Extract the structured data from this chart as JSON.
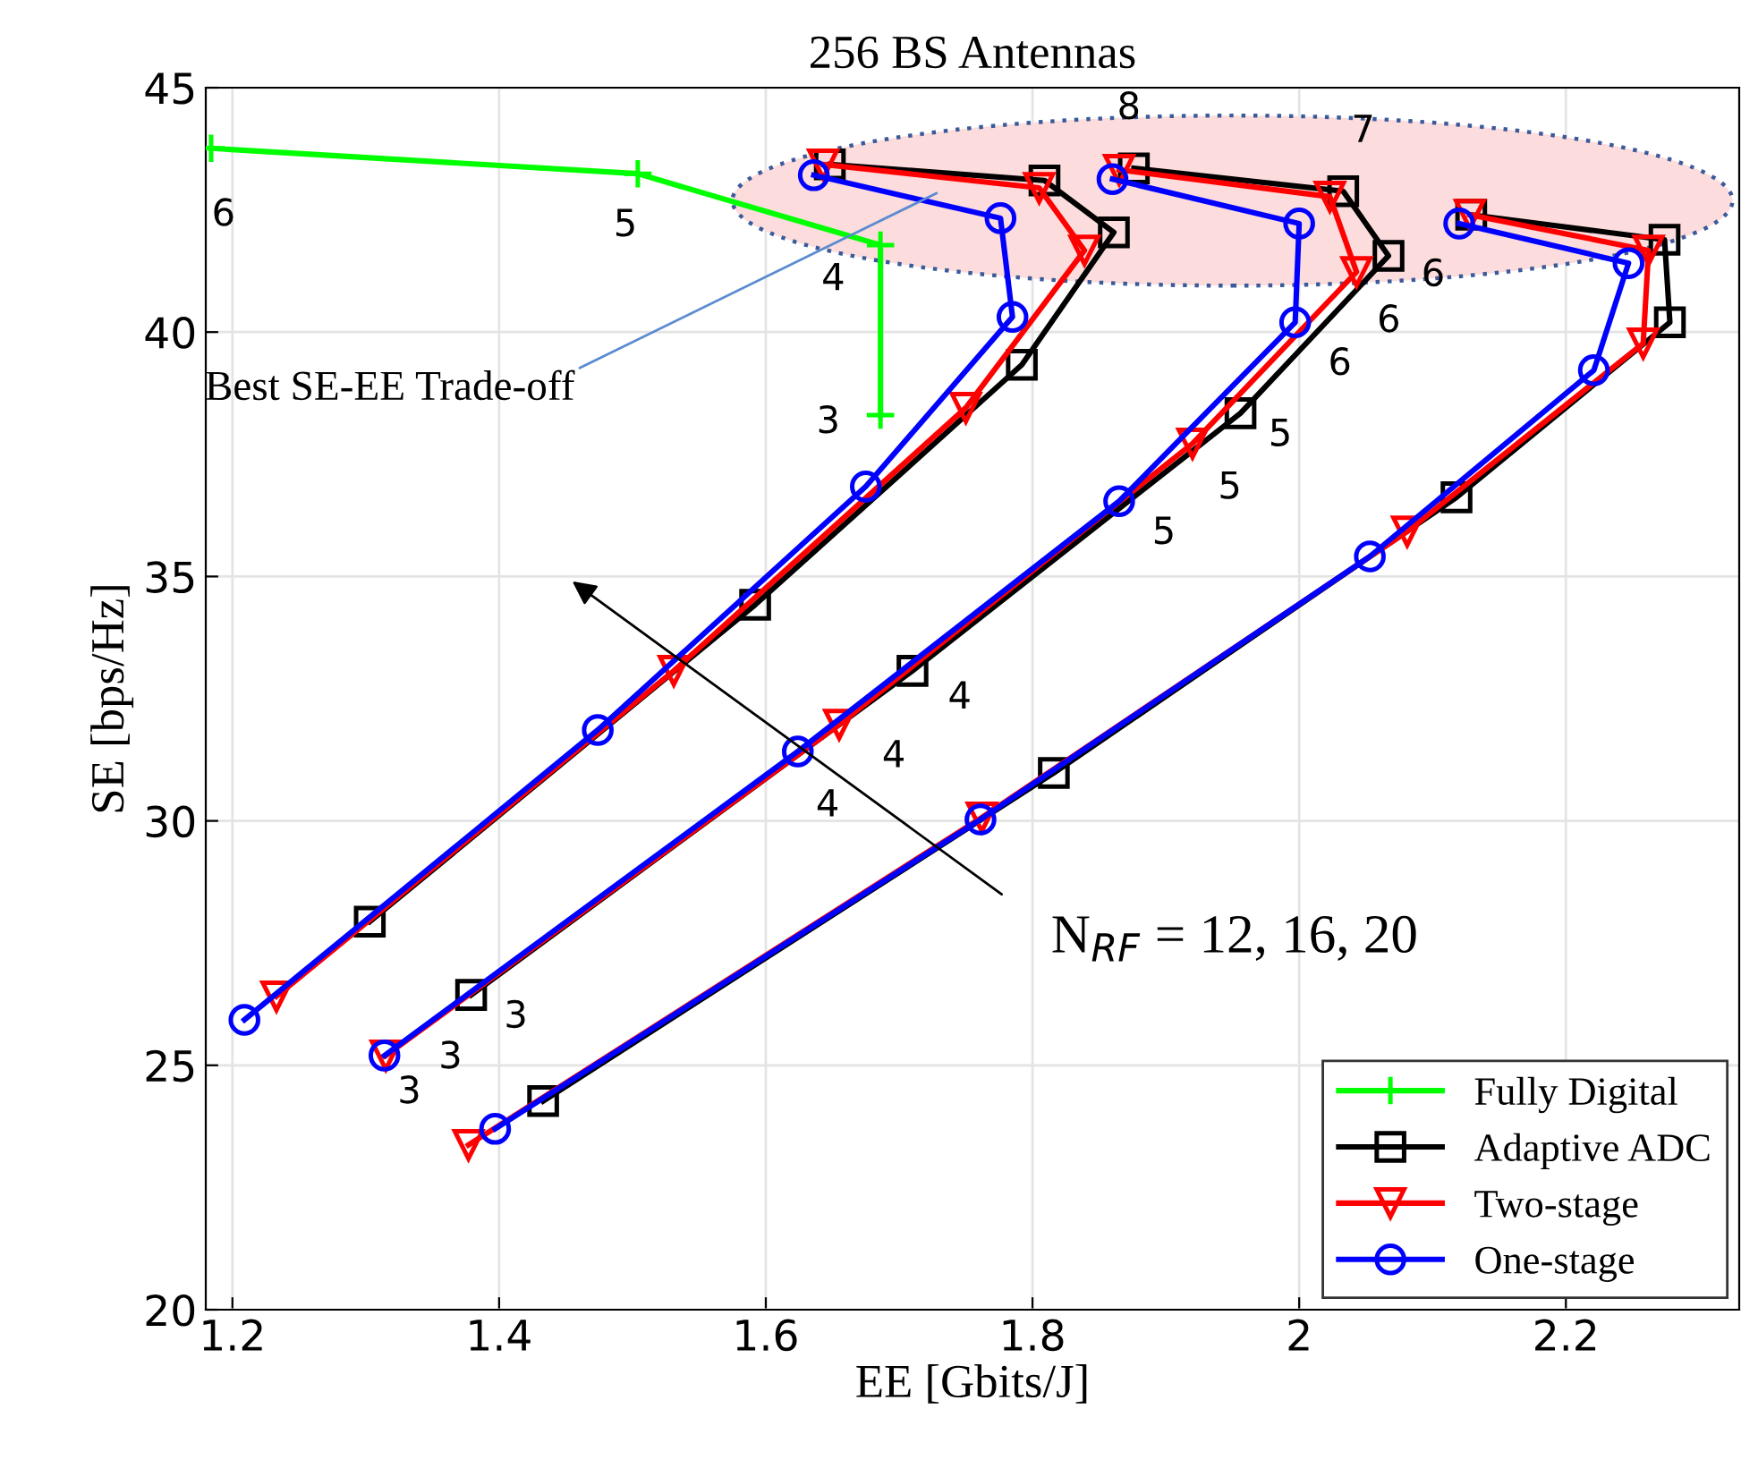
{
  "chart_data": {
    "type": "line",
    "title": "256 BS Antennas",
    "xlabel": "EE [Gbits/J]",
    "ylabel": "SE [bps/Hz]",
    "xlim": [
      1.18,
      2.33
    ],
    "xticks": [
      1.2,
      1.4,
      1.6,
      1.8,
      {
        "value": 2.0,
        "label": "2"
      },
      2.2
    ],
    "ylim": [
      20,
      45
    ],
    "yticks": [
      20,
      25,
      30,
      35,
      40,
      45
    ],
    "grid": true,
    "legend": "bottom right",
    "series": [
      {
        "name": "Fully Digital",
        "color": "#00ff00",
        "marker": "cross",
        "x": [
          1.184,
          1.504,
          1.686,
          1.686
        ],
        "values": [
          43.76,
          43.24,
          41.78,
          38.3
        ]
      },
      {
        "name": "Adaptive ADC",
        "color": "#000000",
        "marker": "square",
        "x": [
          1.303,
          1.592,
          1.792,
          1.861,
          1.809,
          1.648
        ],
        "values": [
          27.94,
          34.42,
          39.33,
          42.04,
          43.1,
          43.43
        ]
      },
      {
        "color": "#000000",
        "marker": "square",
        "x": [
          1.379,
          1.71,
          1.956,
          2.067,
          2.033,
          1.876
        ],
        "values": [
          26.44,
          33.07,
          38.34,
          41.56,
          42.88,
          43.35
        ]
      },
      {
        "color": "#000000",
        "marker": "square",
        "x": [
          1.433,
          1.816,
          2.118,
          2.278,
          2.274,
          2.129
        ],
        "values": [
          24.27,
          30.98,
          36.62,
          40.2,
          41.89,
          42.4
        ]
      },
      {
        "name": "Two-stage",
        "color": "#ff0000",
        "marker": "triangle",
        "x": [
          1.233,
          1.531,
          1.75,
          1.839,
          1.805,
          1.643
        ],
        "values": [
          26.41,
          33.07,
          38.45,
          41.67,
          42.95,
          43.43
        ]
      },
      {
        "color": "#ff0000",
        "marker": "triangle",
        "x": [
          1.315,
          1.655,
          1.92,
          2.043,
          2.023,
          1.865
        ],
        "values": [
          25.2,
          31.97,
          37.72,
          41.23,
          42.77,
          43.32
        ]
      },
      {
        "color": "#ff0000",
        "marker": "triangle",
        "x": [
          1.377,
          1.762,
          2.081,
          2.258,
          2.262,
          2.128
        ],
        "values": [
          23.37,
          30.07,
          35.92,
          39.77,
          41.67,
          42.4
        ]
      },
      {
        "name": "One-stage",
        "color": "#0000ff",
        "marker": "circle",
        "x": [
          1.209,
          1.474,
          1.675,
          1.785,
          1.776,
          1.636
        ],
        "values": [
          25.93,
          31.86,
          36.84,
          40.31,
          42.33,
          43.21
        ]
      },
      {
        "color": "#0000ff",
        "marker": "circle",
        "x": [
          1.314,
          1.624,
          1.865,
          1.997,
          2.0,
          1.86
        ],
        "values": [
          25.2,
          31.42,
          36.54,
          40.2,
          42.22,
          43.13
        ]
      },
      {
        "color": "#0000ff",
        "marker": "circle",
        "x": [
          1.397,
          1.761,
          2.053,
          2.221,
          2.247,
          2.12
        ],
        "values": [
          23.7,
          30.03,
          35.41,
          39.22,
          41.41,
          42.22
        ]
      }
    ],
    "annotations": [
      {
        "text": "6",
        "x": 1.184,
        "y": 43.76
      },
      {
        "text": "5",
        "x": 1.504,
        "y": 43.24
      },
      {
        "text": "4",
        "x": 1.686,
        "y": 41.78
      },
      {
        "text": "3",
        "x": 1.686,
        "y": 38.3
      },
      {
        "text": "8",
        "x": 1.876,
        "y": 43.35
      },
      {
        "text": "7",
        "x": 2.033,
        "y": 42.88
      },
      {
        "text": "6",
        "x": 2.067,
        "y": 41.56
      },
      {
        "text": "6",
        "x": 2.043,
        "y": 41.23
      },
      {
        "text": "6",
        "x": 1.997,
        "y": 40.2
      },
      {
        "text": "5",
        "x": 1.956,
        "y": 38.34
      },
      {
        "text": "5",
        "x": 1.92,
        "y": 37.72
      },
      {
        "text": "5",
        "x": 1.865,
        "y": 36.54
      },
      {
        "text": "4",
        "x": 1.71,
        "y": 33.07
      },
      {
        "text": "4",
        "x": 1.655,
        "y": 31.97
      },
      {
        "text": "4",
        "x": 1.624,
        "y": 31.42
      },
      {
        "text": "3",
        "x": 1.379,
        "y": 26.44
      },
      {
        "text": "3",
        "x": 1.315,
        "y": 25.2
      },
      {
        "text": "3",
        "x": 1.314,
        "y": 25.2
      },
      {
        "text": "Best SE-EE Trade-off",
        "x": 1.728,
        "y": 42.84
      },
      "N$_{RF}$ = 12, 16, 20"
    ]
  }
}
